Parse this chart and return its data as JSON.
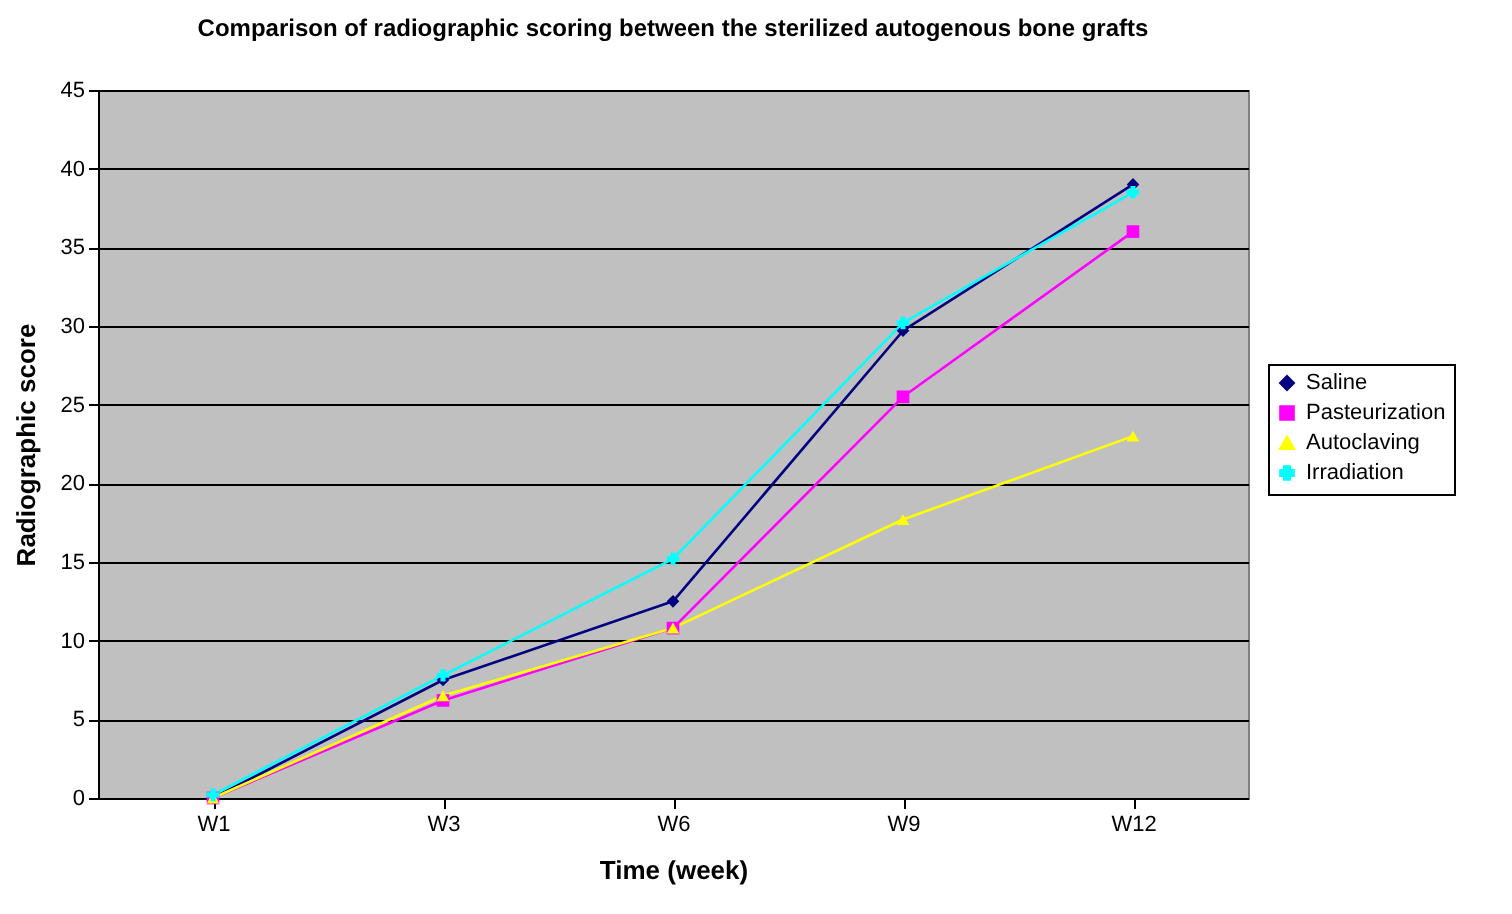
{
  "chart_data": {
    "type": "line",
    "title": "Comparison of radiographic scoring between the sterilized autogenous bone grafts",
    "xlabel": "Time (week)",
    "ylabel": "Radiographic score",
    "categories": [
      "W1",
      "W3",
      "W6",
      "W9",
      "W12"
    ],
    "series": [
      {
        "name": "Saline",
        "color": "#000080",
        "marker": "diamond",
        "values": [
          0,
          7.5,
          12.5,
          29.7,
          39
        ]
      },
      {
        "name": "Pasteurization",
        "color": "#ff00ff",
        "marker": "square",
        "values": [
          0,
          6.2,
          10.8,
          25.5,
          36
        ]
      },
      {
        "name": "Autoclaving",
        "color": "#ffff00",
        "marker": "triangle",
        "values": [
          0,
          6.5,
          10.8,
          17.7,
          23
        ]
      },
      {
        "name": "Irradiation",
        "color": "#00ffff",
        "marker": "cross",
        "values": [
          0.2,
          7.8,
          15.2,
          30.2,
          38.5
        ]
      }
    ],
    "ylim": [
      0,
      45
    ],
    "yticks": [
      0,
      5,
      10,
      15,
      20,
      25,
      30,
      35,
      40,
      45
    ],
    "grid": "y",
    "legend": "right",
    "line_style": "solid"
  }
}
